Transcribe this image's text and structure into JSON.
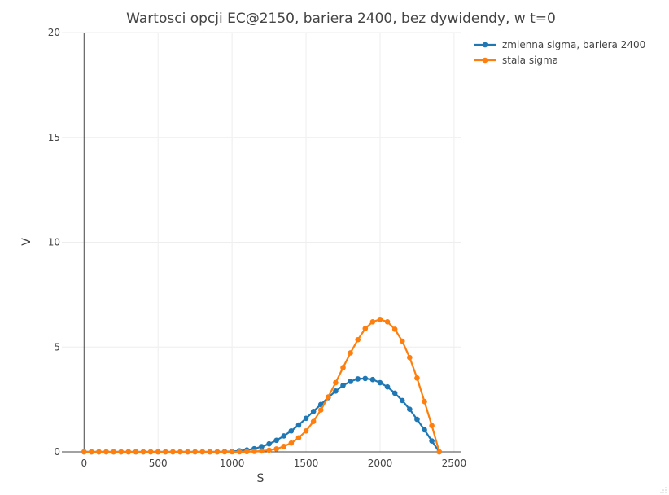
{
  "chart_data": {
    "type": "line",
    "title": "Wartosci opcji EC@2150, bariera 2400, bez dywidendy, w t=0",
    "xlabel": "S",
    "ylabel": "V",
    "xlim": [
      -150,
      2550
    ],
    "ylim": [
      0,
      20
    ],
    "x_ticks": [
      "0",
      "500",
      "1000",
      "1500",
      "2000",
      "2500"
    ],
    "x_tick_values": [
      0,
      500,
      1000,
      1500,
      2000,
      2500
    ],
    "y_ticks": [
      "0",
      "5",
      "10",
      "15",
      "20"
    ],
    "y_tick_values": [
      0,
      5,
      10,
      15,
      20
    ],
    "grid": true,
    "legend_position": "top-right",
    "x": [
      0,
      50,
      100,
      150,
      200,
      250,
      300,
      350,
      400,
      450,
      500,
      550,
      600,
      650,
      700,
      750,
      800,
      850,
      900,
      950,
      1000,
      1050,
      1100,
      1150,
      1200,
      1250,
      1300,
      1350,
      1400,
      1450,
      1500,
      1550,
      1600,
      1650,
      1700,
      1750,
      1800,
      1850,
      1900,
      1950,
      2000,
      2050,
      2100,
      2150,
      2200,
      2250,
      2300,
      2350,
      2400
    ],
    "series": [
      {
        "name": "zmienna sigma, bariera 2400",
        "color": "#1f77b4",
        "values": [
          0,
          0,
          0,
          0,
          0,
          0,
          0,
          0,
          0,
          0,
          0,
          0,
          0,
          0,
          0,
          0,
          0,
          0,
          0,
          0.01,
          0.02,
          0.05,
          0.09,
          0.15,
          0.25,
          0.38,
          0.55,
          0.76,
          1.0,
          1.28,
          1.6,
          1.93,
          2.26,
          2.59,
          2.9,
          3.17,
          3.36,
          3.48,
          3.5,
          3.45,
          3.3,
          3.1,
          2.8,
          2.45,
          2.03,
          1.55,
          1.05,
          0.52,
          0.0
        ]
      },
      {
        "name": "stala sigma",
        "color": "#ff7f0e",
        "values": [
          0,
          0,
          0,
          0,
          0,
          0,
          0,
          0,
          0,
          0,
          0,
          0,
          0,
          0,
          0,
          0,
          0,
          0,
          0,
          0,
          0,
          0,
          0.01,
          0.02,
          0.04,
          0.08,
          0.14,
          0.26,
          0.42,
          0.67,
          1.0,
          1.45,
          2.0,
          2.62,
          3.3,
          4.02,
          4.72,
          5.35,
          5.88,
          6.2,
          6.32,
          6.2,
          5.85,
          5.28,
          4.5,
          3.52,
          2.4,
          1.25,
          0.0
        ]
      }
    ]
  }
}
